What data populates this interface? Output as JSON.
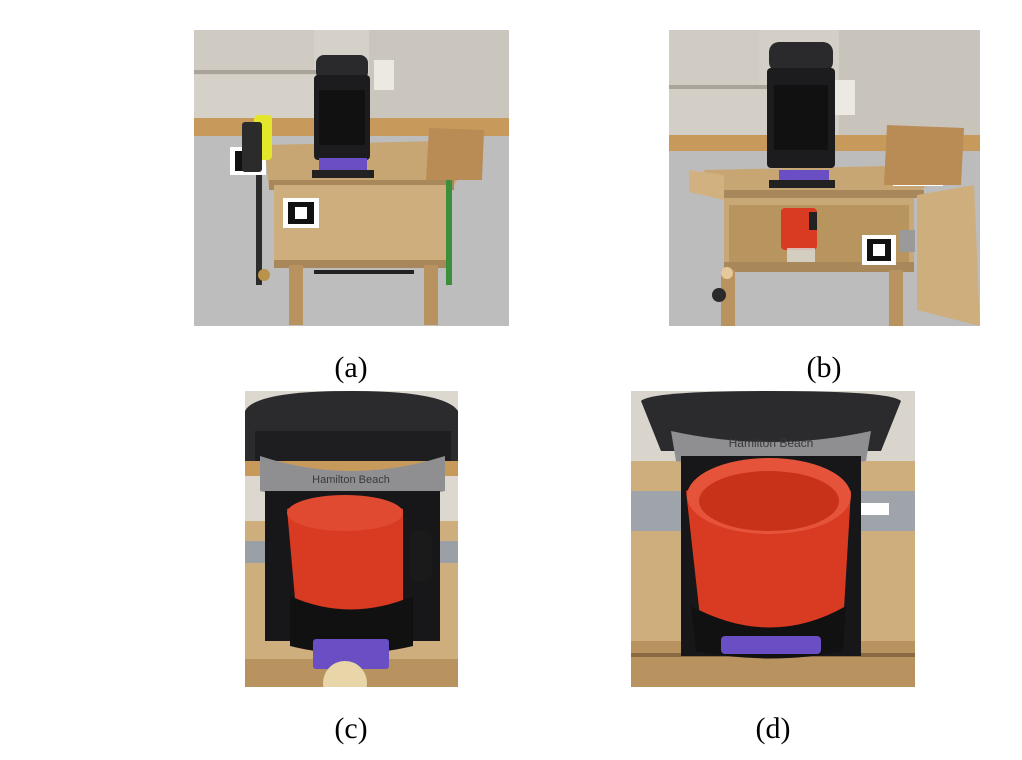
{
  "figure": {
    "panels": [
      {
        "id": "a",
        "caption": "(a)"
      },
      {
        "id": "b",
        "caption": "(b)"
      },
      {
        "id": "c",
        "caption": "(c)",
        "brand_text": "Hamilton Beach"
      },
      {
        "id": "d",
        "caption": "(d)",
        "brand_text": "Hamilton Beach"
      }
    ]
  },
  "colors": {
    "wood": "#c9a877",
    "wood_dark": "#a8875a",
    "wall": "#d9d4cc",
    "floor": "#b9b9b9",
    "machine": "#1e1e20",
    "mug": "#d83a22",
    "purple_tape": "#6a4fc4",
    "yellow_device": "#e3e62a"
  }
}
